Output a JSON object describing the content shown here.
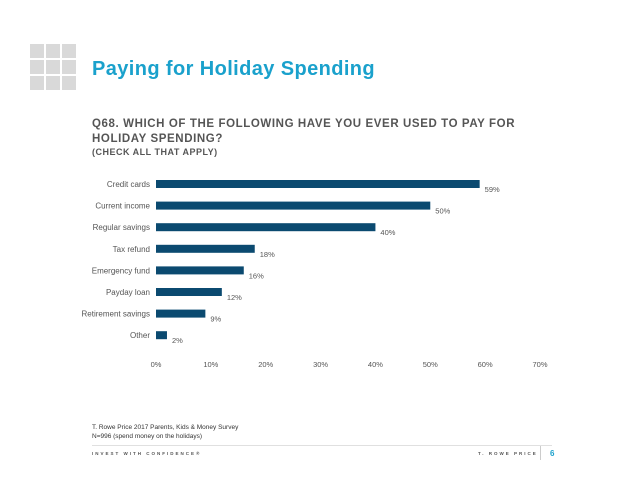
{
  "header": {
    "title": "Paying for Holiday Spending",
    "question": "Q68. WHICH OF THE FOLLOWING HAVE YOU EVER USED TO PAY FOR HOLIDAY SPENDING?",
    "subquestion": "(CHECK ALL THAT APPLY)"
  },
  "footer": {
    "source_line1": "T. Rowe Price 2017 Parents, Kids & Money Survey",
    "source_line2": "N=996 (spend money on the holidays)",
    "tagline": "INVEST WITH CONFIDENCE®",
    "brand": "T. ROWE PRICE",
    "page_number": "6"
  },
  "colors": {
    "bar": "#0b4a70",
    "title": "#1aa1cc",
    "logo": "#d9d9d9"
  },
  "chart_data": {
    "type": "bar",
    "orientation": "horizontal",
    "categories": [
      "Credit cards",
      "Current income",
      "Regular savings",
      "Tax refund",
      "Emergency fund",
      "Payday loan",
      "Retirement savings",
      "Other"
    ],
    "values": [
      59,
      50,
      40,
      18,
      16,
      12,
      9,
      2
    ],
    "value_labels": [
      "59%",
      "50%",
      "40%",
      "18%",
      "16%",
      "12%",
      "9%",
      "2%"
    ],
    "x_ticks": [
      "0%",
      "10%",
      "20%",
      "30%",
      "40%",
      "50%",
      "60%",
      "70%"
    ],
    "xlim": [
      0,
      70
    ],
    "grid": false,
    "title": "",
    "xlabel": "",
    "ylabel": ""
  }
}
